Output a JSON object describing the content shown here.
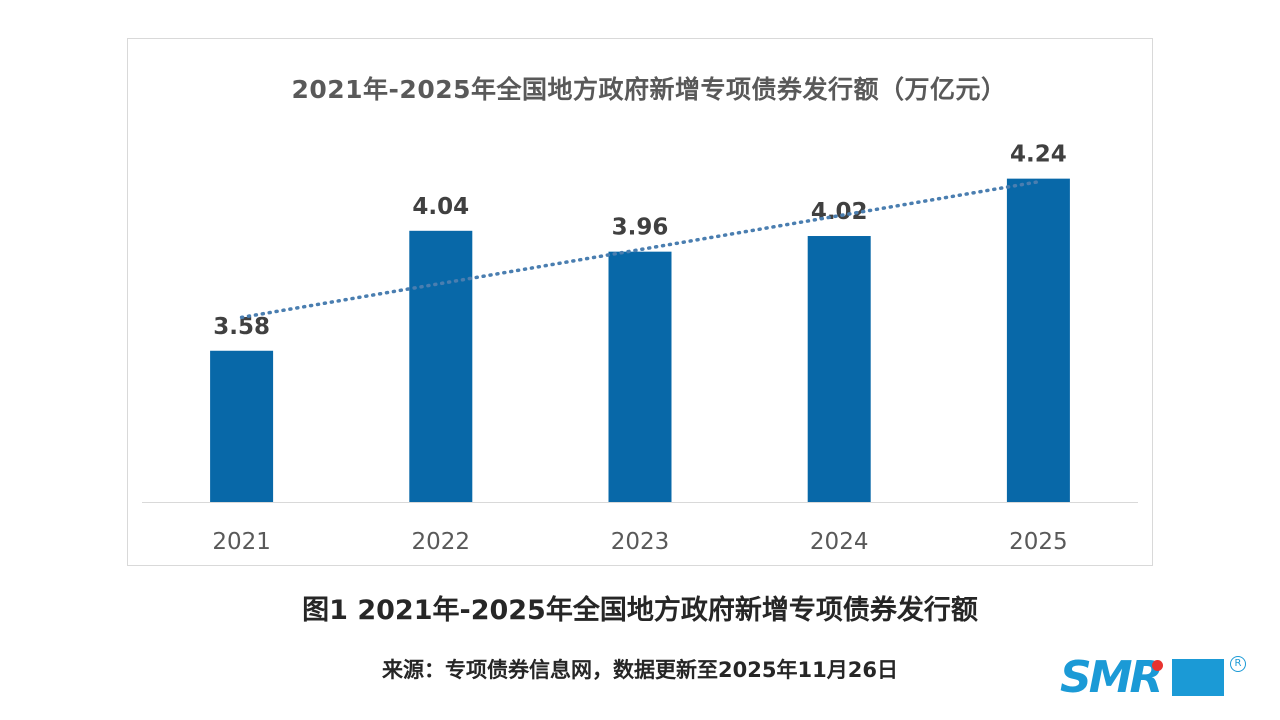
{
  "chart_data": {
    "type": "bar",
    "title": "2021年-2025年全国地方政府新增专项债券发行额（万亿元）",
    "categories": [
      "2021",
      "2022",
      "2023",
      "2024",
      "2025"
    ],
    "values": [
      3.58,
      4.04,
      3.96,
      4.02,
      4.24
    ],
    "data_labels": [
      "3.58",
      "4.04",
      "3.96",
      "4.02",
      "4.24"
    ],
    "ylim": [
      3.0,
      4.3
    ],
    "trendline": "linear",
    "grid": false,
    "colors": {
      "bar": "#0868a8",
      "trendline": "#4a7eb0",
      "label": "#404040",
      "tick": "#595959",
      "axis": "#d9d9d9"
    }
  },
  "caption": "图1 2021年-2025年全国地方政府新增专项债券发行额",
  "source": "来源：专项债券信息网，数据更新至2025年11月26日",
  "logo": {
    "text": "SMR",
    "reg_mark": "R"
  }
}
